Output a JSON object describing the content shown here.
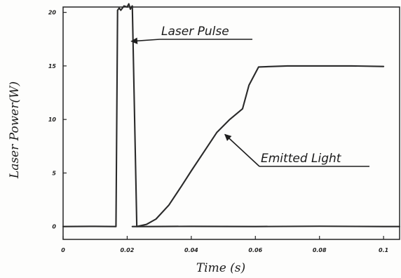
{
  "chart_data": {
    "type": "line",
    "xlabel": "Time (s)",
    "ylabel": "Laser Power(W)",
    "xlim": [
      0,
      0.105
    ],
    "ylim": [
      -1.2,
      20.5
    ],
    "x_ticks": [
      {
        "value": 0,
        "label": "0"
      },
      {
        "value": 0.02,
        "label": "0.02"
      },
      {
        "value": 0.04,
        "label": "0.04"
      },
      {
        "value": 0.06,
        "label": "0.06"
      },
      {
        "value": 0.08,
        "label": "0.08"
      },
      {
        "value": 0.1,
        "label": "0.1"
      }
    ],
    "y_ticks": [
      {
        "value": 0,
        "label": "0"
      },
      {
        "value": 5,
        "label": "5"
      },
      {
        "value": 10,
        "label": "10"
      },
      {
        "value": 15,
        "label": "15"
      },
      {
        "value": 20,
        "label": "20"
      }
    ],
    "grid": false,
    "series": [
      {
        "name": "Laser Pulse",
        "color": "#2a2a2a",
        "x": [
          0,
          0.01,
          0.0165,
          0.017,
          0.0175,
          0.018,
          0.019,
          0.02,
          0.0205,
          0.021,
          0.0213,
          0.0216,
          0.023,
          0.027,
          0.04,
          0.06,
          0.08,
          0.1,
          0.105
        ],
        "y": [
          0,
          0.02,
          0,
          20.2,
          20.4,
          20.2,
          20.6,
          20.5,
          20.8,
          20.3,
          20.5,
          20.6,
          0,
          0,
          0.02,
          0,
          0.03,
          0,
          0
        ]
      },
      {
        "name": "Emitted Light",
        "color": "#2a2a2a",
        "x": [
          0.0216,
          0.023,
          0.026,
          0.029,
          0.033,
          0.037,
          0.04,
          0.044,
          0.048,
          0.052,
          0.054,
          0.056,
          0.058,
          0.061,
          0.07,
          0.08,
          0.09,
          0.1
        ],
        "y": [
          0,
          0,
          0.2,
          0.7,
          2.0,
          3.8,
          5.2,
          7.0,
          8.8,
          10.0,
          10.5,
          11.0,
          13.2,
          14.9,
          15.0,
          15.0,
          15.0,
          14.95
        ]
      }
    ],
    "annotations": [
      {
        "text": "Laser Pulse",
        "series": "Laser Pulse",
        "x": 0.0213,
        "y": 17.3
      },
      {
        "text": "Emitted Light",
        "series": "Emitted Light",
        "x": 0.0505,
        "y": 8.6
      }
    ]
  }
}
